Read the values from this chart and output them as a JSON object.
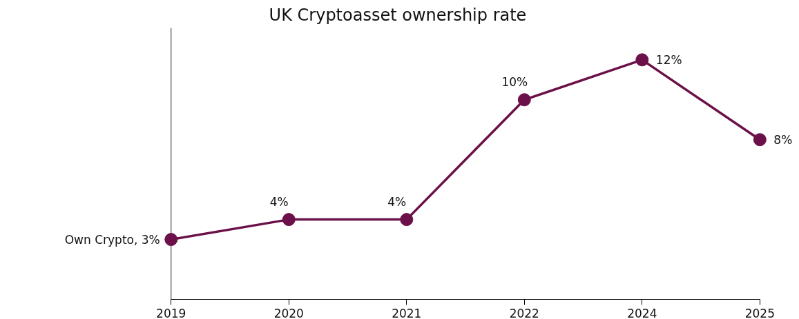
{
  "chart_data": {
    "type": "line",
    "title": "UK Cryptoasset ownership rate",
    "categories": [
      "2019",
      "2020",
      "2021",
      "2022",
      "2024",
      "2025"
    ],
    "series": [
      {
        "color": "#6b1048",
        "values": [
          3,
          4,
          4,
          10,
          12,
          8
        ],
        "value_labels": [
          "Own Crypto, 3%",
          "4%",
          "4%",
          "10%",
          "12%",
          "8%"
        ]
      }
    ],
    "ylim": [
      0,
      13.6
    ],
    "tick_labels": "x",
    "grid": false,
    "marker": "circle",
    "line_style": "solid"
  }
}
